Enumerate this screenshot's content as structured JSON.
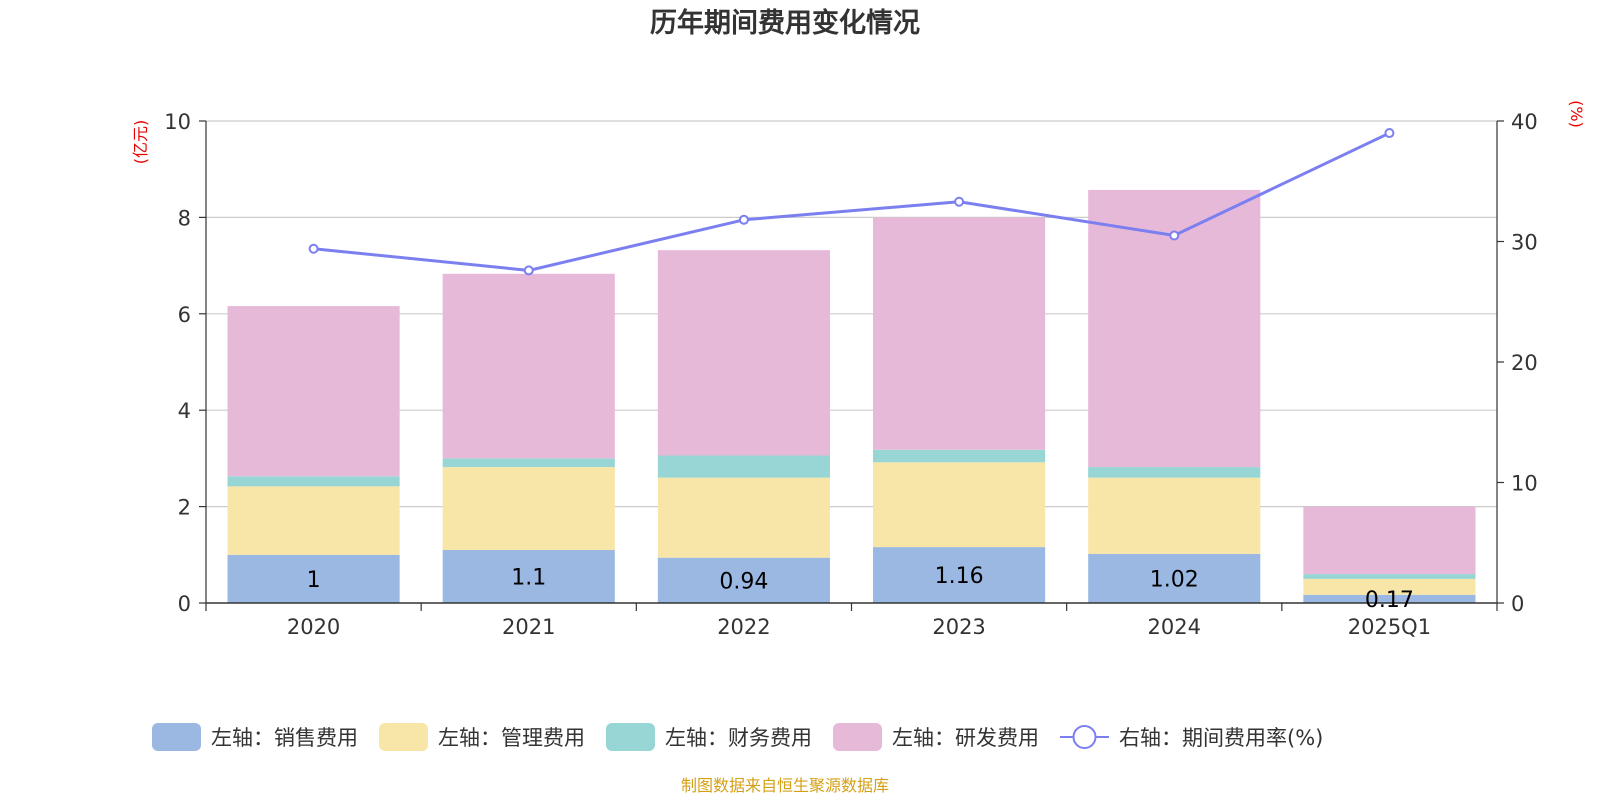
{
  "chart_data": {
    "type": "bar",
    "stacked": true,
    "title": "历年期间费用变化情况",
    "categories": [
      "2020",
      "2021",
      "2022",
      "2023",
      "2024",
      "2025Q1"
    ],
    "left_axis": {
      "unit": "(亿元)",
      "ylim": [
        0,
        10
      ],
      "ticks": [
        0,
        2,
        4,
        6,
        8,
        10
      ]
    },
    "right_axis": {
      "unit": "(%)",
      "ylim": [
        0,
        40
      ],
      "ticks": [
        0,
        10,
        20,
        30,
        40
      ]
    },
    "series": [
      {
        "name": "左轴：销售费用",
        "axis": "left",
        "type": "bar",
        "color": "#9bb8e2",
        "values": [
          1.0,
          1.1,
          0.94,
          1.16,
          1.02,
          0.17
        ],
        "labels": [
          "1",
          "1.1",
          "0.94",
          "1.16",
          "1.02",
          "0.17"
        ]
      },
      {
        "name": "左轴：管理费用",
        "axis": "left",
        "type": "bar",
        "color": "#f8e6a8",
        "values": [
          1.42,
          1.72,
          1.66,
          1.76,
          1.58,
          0.33
        ]
      },
      {
        "name": "左轴：财务费用",
        "axis": "left",
        "type": "bar",
        "color": "#98d5d5",
        "values": [
          0.21,
          0.18,
          0.46,
          0.26,
          0.22,
          0.1
        ]
      },
      {
        "name": "左轴：研发费用",
        "axis": "left",
        "type": "bar",
        "color": "#e7b9d9",
        "values": [
          3.53,
          3.83,
          4.26,
          4.82,
          5.75,
          1.4
        ]
      },
      {
        "name": "右轴：期间费用率(%)",
        "axis": "right",
        "type": "line",
        "color": "#7b7ff0",
        "values": [
          29.4,
          27.6,
          31.8,
          33.3,
          30.5,
          39.0
        ]
      }
    ]
  },
  "source": "制图数据来自恒生聚源数据库"
}
